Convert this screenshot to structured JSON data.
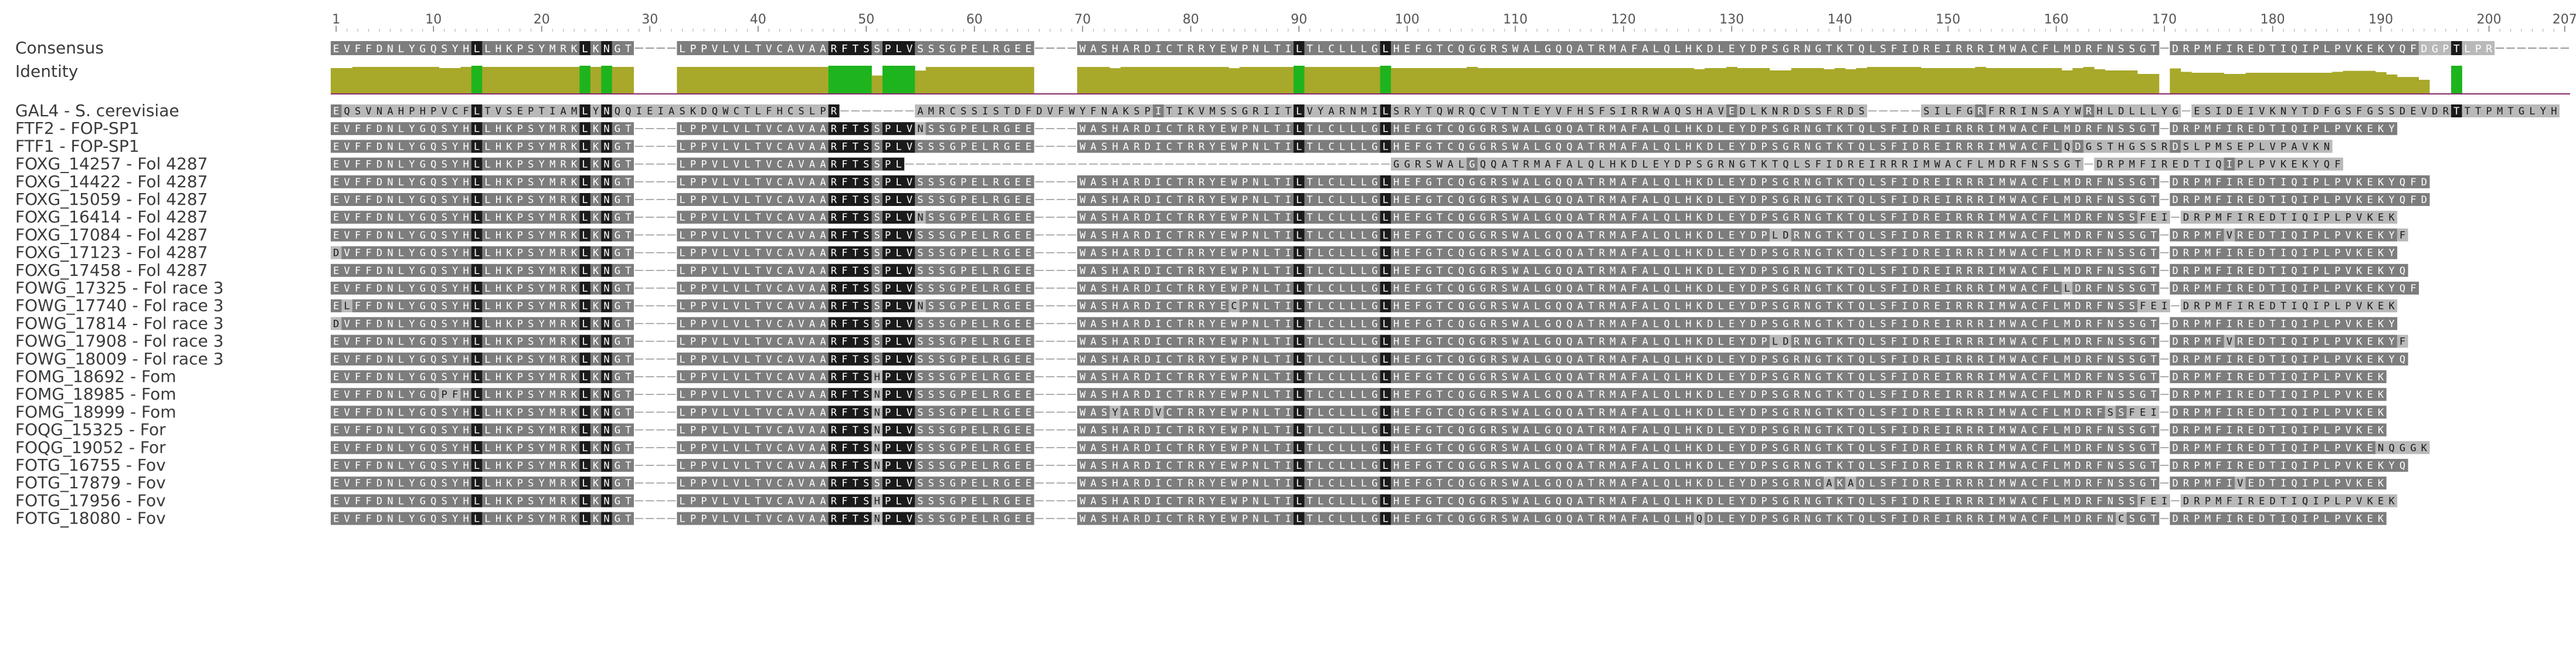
{
  "ruler": {
    "start": 1,
    "end": 207,
    "ticks": [
      1,
      10,
      20,
      30,
      40,
      50,
      60,
      70,
      80,
      90,
      100,
      110,
      120,
      130,
      140,
      150,
      160,
      170,
      180,
      190,
      200,
      207
    ]
  },
  "consensus": {
    "label": "Consensus",
    "sequence": "EVFFDNLYGQSYHLLHKPSYMRKLKNGT----LPPVLVLTVCAVAARFTSSPLVSSSGPELRGEE----WASHARDICTRRYEWPNLTILTLCLLLGLHEFGTCQGGRSWALGQQATRMAFALQLHKDLEYDPSGRNGTKTQLSFIDREIRRRIMWACFLMDRFNSSGT-DRPMFIREDTIQIPLPVKEKYQFDGPTLPR"
  },
  "identity": {
    "label": "Identity",
    "note": "per-column identity histogram (green = 100% identical)"
  },
  "colors": {
    "identical": "#1a1a1a",
    "similar": "#7d7d7d",
    "weak": "#b9b9b9",
    "gap": "#9a9a9a",
    "identity_full": "#1eb41e",
    "identity_partial": "#a8a82a",
    "identity_line": "#8a2a6a",
    "label_text": "#3a3a3a"
  },
  "sequences": [
    {
      "name": "GAL4 - S. cerevisiae",
      "seq": "EQSVNAHPHPVCFLTVSEPTIAMLYNQQIEIASKDQWCTLFHCSLPR-------AMRCSSISTDFDVFWYFNAKSPITIKVMSSGRIITLVYARNMILSRYTQWRQCVTNTEYVFHSFSIRRWAQSHAVEDLKNRDSSFRDS-----SILFGRFRRINSAYWRHLDLLLYG-ESIDEIVKNYTDFGSFGSSDEVDRTTTPMTGLYH"
    },
    {
      "name": "FTF2 - FOP-SP1",
      "seq": "EVFFDNLYGQSYHLLHKPSYMRKLKNGT----LPPVLVLTVCAVAARFTSSPLVNSSGPELRGEE----WASHARDICTRRYEWPNLTILTLCLLLGLHEFGTCQGGRSWALGQQATRMAFALQLHKDLEYDPSGRNGTKTQLSFIDREIRRRIMWACFLMDRFNSSGT-DRPMFIREDTIQIPLPVKEKY"
    },
    {
      "name": "FTF1 - FOP-SP1",
      "seq": "EVFFDNLYGQSYHLLHKPSYMRKLKNGT----LPPVLVLTVCAVAARFTSSPLVSSSGPELRGEE----WASHARDICTRRYEWPNLTILTLCLLLGLHEFGTCQGGRSWALGQQATRMAFALQLHKDLEYDPSGRNGTKTQLSFIDREIRRRIMWACFLQDGSTHGSSRDSLPMSEPLVPAVKN"
    },
    {
      "name": "FOXG_14257 - Fol 4287",
      "seq": "EVFFDNLYGQSYHLLHKPSYMRKLKNGT----LPPVLVLTVCAVAARFTSSPL---------------------------------------------GGRSWALGQQATRMAFALQLHKDLEYDPSGRNGTKTQLSFIDREIRRRIMWACFLMDRFNSSGT-DRPMFIREDTIQIPLPVKEKYQF"
    },
    {
      "name": "FOXG_14422 - Fol 4287",
      "seq": "EVFFDNLYGQSYHLLHKPSYMRKLKNGT----LPPVLVLTVCAVAARFTSSPLVSSSGPELRGEE----WASHARDICTRRYEWPNLTILTLCLLLGLHEFGTCQGGRSWALGQQATRMAFALQLHKDLEYDPSGRNGTKTQLSFIDREIRRRIMWACFLMDRFNSSGT-DRPMFIREDTIQIPLPVKEKYQFD"
    },
    {
      "name": "FOXG_15059 - Fol 4287",
      "seq": "EVFFDNLYGQSYHLLHKPSYMRKLKNGT----LPPVLVLTVCAVAARFTSSPLVSSSGPELRGEE----WASHARDICTRRYEWPNLTILTLCLLLGLHEFGTCQGGRSWALGQQATRMAFALQLHKDLEYDPSGRNGTKTQLSFIDREIRRRIMWACFLMDRFNSSGT-DRPMFIREDTIQIPLPVKEKYQFD"
    },
    {
      "name": "FOXG_16414 - Fol 4287",
      "seq": "EVFFDNLYGQSYHLLHKPSYMRKLKNGT----LPPVLVLTVCAVAARFTSSPLVNSSGPELRGEE----WASHARDICTRRYEWPNLTILTLCLLLGLHEFGTCQGGRSWALGQQATRMAFALQLHKDLEYDPSGRNGTKTQLSFIDREIRRRIMWACFLMDRFNSSFEI-DRPMFIREDTIQIPLPVKEK"
    },
    {
      "name": "FOXG_17084 - Fol 4287",
      "seq": "EVFFDNLYGQSYHLLHKPSYMRKLKNGT----LPPVLVLTVCAVAARFTSSPLVSSSGPELRGEE----WASHARDICTRRYEWPNLTILTLCLLLGLHEFGTCQGGRSWALGQQATRMAFALQLHKDLEYDPLDRNGTKTQLSFIDREIRRRIMWACFLMDRFNSSGT-DRPMFVREDTIQIPLPVKEKYF"
    },
    {
      "name": "FOXG_17123 - Fol 4287",
      "seq": "DVFFDNLYGQSYHLLHKPSYMRKLKNGT----LPPVLVLTVCAVAARFTSSPLVSSSGPELRGEE----WASHARDICTRRYEWPNLTILTLCLLLGLHEFGTCQGGRSWALGQQATRMAFALQLHKDLEYDPSGRNGTKTQLSFIDREIRRRIMWACFLMDRFNSSGT-DRPMFIREDTIQIPLPVKEKY"
    },
    {
      "name": "FOXG_17458 - Fol 4287",
      "seq": "EVFFDNLYGQSYHLLHKPSYMRKLKNGT----LPPVLVLTVCAVAARFTSSPLVSSSGPELRGEE----WASHARDICTRRYEWPNLTILTLCLLLGLHEFGTCQGGRSWALGQQATRMAFALQLHKDLEYDPSGRNGTKTQLSFIDREIRRRIMWACFLMDRFNSSGT-DRPMFIREDTIQIPLPVKEKYQ"
    },
    {
      "name": "FOWG_17325 - Fol race 3",
      "seq": "EVFFDNLYGQSYHLLHKPSYMRKLKNGT----LPPVLVLTVCAVAARFTSSPLVSSSGPELRGEE----WASHARDICTRRYEWPNLTILTLCLLLGLHEFGTCQGGRSWALGQQATRMAFALQLHKDLEYDPSGRNGTKTQLSFIDREIRRRIMWACFLLDRFNSSGT-DRPMFIREDTIQIPLPVKEKYQF"
    },
    {
      "name": "FOWG_17740 - Fol race 3",
      "seq": "ELFFDNLYGQSYHLLHKPSYMRKLKNGT----LPPVLVLTVCAVAARFTSSPLVNSSGPELRGEE----WASHARDICTRRYECPNLTILTLCLLLGLHEFGTCQGGRSWALGQQATRMAFALQLHKDLEYDPSGRNGTKTQLSFIDREIRRRIMWACFLMDRFNSSFEI-DRPMFIREDTIQIPLPVKEK"
    },
    {
      "name": "FOWG_17814 - Fol race 3",
      "seq": "DVFFDNLYGQSYHLLHKPSYMRKLKNGT----LPPVLVLTVCAVAARFTSSPLVSSSGPELRGEE----WASHARDICTRRYEWPNLTILTLCLLLGLHEFGTCQGGRSWALGQQATRMAFALQLHKDLEYDPSGRNGTKTQLSFIDREIRRRIMWACFLMDRFNSSGT-DRPMFIREDTIQIPLPVKEKY"
    },
    {
      "name": "FOWG_17908 - Fol race 3",
      "seq": "EVFFDNLYGQSYHLLHKPSYMRKLKNGT----LPPVLVLTVCAVAARFTSSPLVSSSGPELRGEE----WASHARDICTRRYEWPNLTILTLCLLLGLHEFGTCQGGRSWALGQQATRMAFALQLHKDLEYDPLDRNGTKTQLSFIDREIRRRIMWACFLMDRFNSSGT-DRPMFVREDTIQIPLPVKEKYF"
    },
    {
      "name": "FOWG_18009 - Fol race 3",
      "seq": "EVFFDNLYGQSYHLLHKPSYMRKLKNGT----LPPVLVLTVCAVAARFTSSPLVSSSGPELRGEE----WASHARDICTRRYEWPNLTILTLCLLLGLHEFGTCQGGRSWALGQQATRMAFALQLHKDLEYDPSGRNGTKTQLSFIDREIRRRIMWACFLMDRFNSSGT-DRPMFIREDTIQIPLPVKEKYQ"
    },
    {
      "name": "FOMG_18692 - Fom",
      "seq": "EVFFDNLYGQSYHLLHKPSYMRKLKNGT----LPPVLVLTVCAVAARFTSHPLVSSSGPELRGEE----WASHARDICTRRYEWPNLTILTLCLLLGLHEFGTCQGGRSWALGQQATRMAFALQLHKDLEYDPSGRNGTKTQLSFIDREIRRRIMWACFLMDRFNSSGT-DRPMFIREDTIQIPLPVKEK"
    },
    {
      "name": "FOMG_18985 - Fom",
      "seq": "EVFFDNLYGQPFHLLHKPSYMRKLKNGT----LPPVLVLTVCAVAARFTSNPLVSSSGPELRGEE----WASHARDICTRRYEWPNLTILTLCLLLGLHEFGTCQGGRSWALGQQATRMAFALQLHKDLEYDPSGRNGTKTQLSFIDREIRRRIMWACFLMDRFNSSGT-DRPMFIREDTIQIPLPVKEK"
    },
    {
      "name": "FOMG_18999 - Fom",
      "seq": "EVFFDNLYGQSYHLLHKPSYMRKLKNGT----LPPVLVLTVCAVAARFTSNPLVSSSGPELRGEE----WASYARDVCTRRYEWPNLTILTLCLLLGLHEFGTCQGGRSWALGQQATRMAFALQLHKDLEYDPSGRNGTKTQLSFIDREIRRRIMWACFLMDRFSSFEI-DRPMFIREDTIQIPLPVKEK"
    },
    {
      "name": "FOQG_15325 - For",
      "seq": "EVFFDNLYGQSYHLLHKPSYMRKLKNGT----LPPVLVLTVCAVAARFTSNPLVSSSGPELRGEE----WASHARDICTRRYEWPNLTILTLCLLLGLHEFGTCQGGRSWALGQQATRMAFALQLHKDLEYDPSGRNGTKTQLSFIDREIRRRIMWACFLMDRFNSSGT-DRPMFIREDTIQIPLPVKEK"
    },
    {
      "name": "FOQG_19052 - For",
      "seq": "EVFFDNLYGQSYHLLHKPSYMRKLKNGT----LPPVLVLTVCAVAARFTSNPLVSSSGPELRGEE----WASHARDICTRRYEWPNLTILTLCLLLGLHEFGTCQGGRSWALGQQATRMAFALQLHKDLEYDPSGRNGTKTQLSFIDREIRRRIMWACFLMDRFNSSGT-DRPMFIREDTIQIPLPVKENQGGK"
    },
    {
      "name": "FOTG_16755 - Fov",
      "seq": "EVFFDNLYGQSYHLLHKPSYMRKLKNGT----LPPVLVLTVCAVAARFTSNPLVSSSGPELRGEE----WASHARDICTRRYEWPNLTILTLCLLLGLHEFGTCQGGRSWALGQQATRMAFALQLHKDLEYDPSGRNGTKTQLSFIDREIRRRIMWACFLMDRFNSSGT-DRPMFIREDTIQIPLPVKEKYQ"
    },
    {
      "name": "FOTG_17879 - Fov",
      "seq": "EVFFDNLYGQSYHLLHKPSYMRKLKNGT----LPPVLVLTVCAVAARFTSSPLVSSSGPELRGEE----WASHARDICTRRYEWPNLTILTLCLLLGLHEFGTCQGGRSWALGQQATRMAFALQLHKDLEYDPSGRNGAKAQLSFIDREIRRRIMWACFLMDRFNSSGT-DRPMFIVEDTIQIPLPVKEK"
    },
    {
      "name": "FOTG_17956 - Fov",
      "seq": "EVFFDNLYGQSYHLLHKPSYMRKLKNGT----LPPVLVLTVCAVAARFTSHPLVSSSGPELRGEE----WASHARDICTRRYEWPNLTILTLCLLLGLHEFGTCQGGRSWALGQQATRMAFALQLHKDLEYDPSGRNGTKTQLSFIDREIRRRIMWACFLMDRFNSSFEI-DRPMFIREDTIQIPLPVKEK"
    },
    {
      "name": "FOTG_18080 - Fov",
      "seq": "EVFFDNLYGQSYHLLHKPSYMRKLKNGT----LPPVLVLTVCAVAARFTSNPLVSSSGPELRGEE----WASHARDICTRRYEWPNLTILTLCLLLGLHEFGTCQGGRSWALGQQATRMAFALQLHQDLEYDPSGRNGTKTQLSFIDREIRRRIMWACFLMDRFNCSGT-DRPMFIREDTIQIPLPVKEK"
    }
  ]
}
